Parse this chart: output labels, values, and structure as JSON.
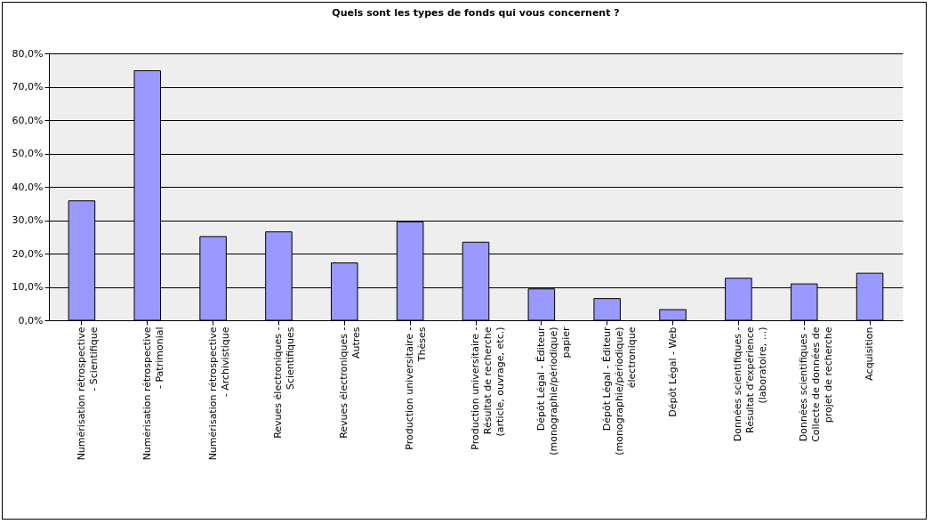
{
  "chart_data": {
    "type": "bar",
    "title": "Quels sont les types de fonds qui vous concernent ?",
    "categories": [
      "Numérisation rétrospective - Scientifique",
      "Numérisation rétrospective - Patrimonial",
      "Numérisation rétrospective - Archivistique",
      "Revues électroniques - Scientifiques",
      "Revues électroniques - Autres",
      "Production universitaire - Thèses",
      "Production universitaire - Résultat de recherche (article, ouvrage, etc.)",
      "Dépôt Légal - Éditeur (monographie/périodique) papier",
      "Dépôt Légal - Éditeur (monographie/périodique) électronique",
      "Dépôt Légal - Web",
      "Données scientifiques - Résultat d'expérience (laboratoire, ...)",
      "Données scientifiques - Collecte de données de projet de recherche",
      "Acquisition"
    ],
    "values": [
      35.8,
      74.8,
      25.1,
      26.5,
      17.2,
      29.5,
      23.4,
      9.4,
      6.5,
      3.2,
      12.6,
      10.9,
      14.1
    ],
    "color": "#9999ff",
    "ylim": [
      0,
      80
    ],
    "yticks": [
      {
        "value": 0,
        "label": "0,0%"
      },
      {
        "value": 10,
        "label": "10,0%"
      },
      {
        "value": 20,
        "label": "20,0%"
      },
      {
        "value": 30,
        "label": "30,0%"
      },
      {
        "value": 40,
        "label": "40,0%"
      },
      {
        "value": 50,
        "label": "50,0%"
      },
      {
        "value": 60,
        "label": "60,0%"
      },
      {
        "value": 70,
        "label": "70,0%"
      },
      {
        "value": 80,
        "label": "80,0%"
      }
    ],
    "grid": "y"
  }
}
